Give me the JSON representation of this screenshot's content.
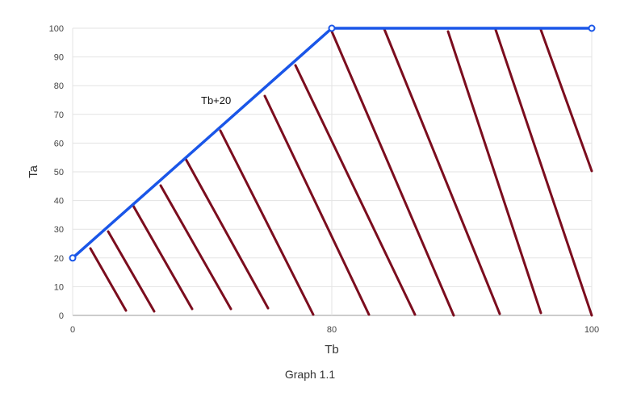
{
  "chart_data": {
    "type": "line",
    "xlabel": "Tb",
    "ylabel": "Ta",
    "x_tick_labels": [
      "0",
      "80",
      "100"
    ],
    "y_ticks": [
      0,
      10,
      20,
      30,
      40,
      50,
      60,
      70,
      80,
      90,
      100
    ],
    "ylim": [
      0,
      100
    ],
    "grid": true,
    "series": [
      {
        "color": "#1a56e8",
        "points": [
          {
            "x_label": "0",
            "y": 20
          },
          {
            "x_label": "80",
            "y": 100
          },
          {
            "x_label": "100",
            "y": 100
          }
        ]
      }
    ],
    "annotation": "Tb+20",
    "hatch": {
      "color": "#7b0d1e",
      "description": "diagonal hatching filling the region below the line"
    }
  },
  "caption": "Graph 1.1"
}
